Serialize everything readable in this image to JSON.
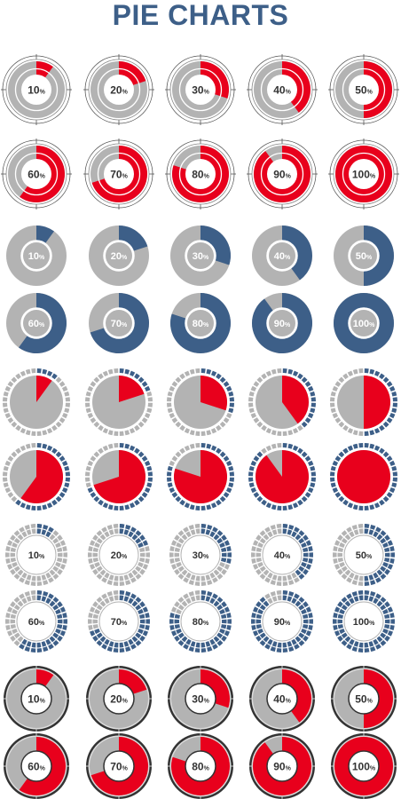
{
  "title": "PIE CHARTS",
  "colors": {
    "title": "#3d5f88",
    "red": "#e8001c",
    "blue": "#3d5f88",
    "gray": "#b3b3b3",
    "dark_ring": "#333333",
    "white": "#ffffff",
    "label": "#333333"
  },
  "chart_data": [
    {
      "type": "pie",
      "set": 1,
      "style": "donut-with-crosshair-ring",
      "accent": "red",
      "categories": [
        "10%",
        "20%",
        "30%",
        "40%",
        "50%",
        "60%",
        "70%",
        "80%",
        "90%",
        "100%"
      ],
      "values": [
        10,
        20,
        30,
        40,
        50,
        60,
        70,
        80,
        90,
        100
      ],
      "labels": [
        "10%",
        "20%",
        "30%",
        "40%",
        "50%",
        "60%",
        "70%",
        "80%",
        "90%",
        "100%"
      ]
    },
    {
      "type": "pie",
      "set": 2,
      "style": "donut",
      "accent": "blue",
      "categories": [
        "10%",
        "20%",
        "30%",
        "40%",
        "50%",
        "60%",
        "70%",
        "80%",
        "90%",
        "100%"
      ],
      "values": [
        10,
        20,
        30,
        40,
        50,
        60,
        70,
        80,
        90,
        100
      ],
      "labels": [
        "10%",
        "20%",
        "30%",
        "40%",
        "50%",
        "60%",
        "70%",
        "80%",
        "90%",
        "100%"
      ]
    },
    {
      "type": "pie",
      "set": 3,
      "style": "pie-with-segmented-ring",
      "accent": "red",
      "categories": [
        "10%",
        "20%",
        "30%",
        "40%",
        "50%",
        "60%",
        "70%",
        "80%",
        "90%",
        "100%"
      ],
      "values": [
        10,
        20,
        30,
        40,
        50,
        60,
        70,
        80,
        90,
        100
      ],
      "labels": []
    },
    {
      "type": "pie",
      "set": 4,
      "style": "segmented-donut",
      "accent": "blue",
      "categories": [
        "10%",
        "20%",
        "30%",
        "40%",
        "50%",
        "60%",
        "70%",
        "80%",
        "90%",
        "100%"
      ],
      "values": [
        10,
        20,
        30,
        40,
        50,
        60,
        70,
        80,
        90,
        100
      ],
      "labels": [
        "10%",
        "20%",
        "30%",
        "40%",
        "50%",
        "60%",
        "70%",
        "80%",
        "90%",
        "100%"
      ]
    },
    {
      "type": "pie",
      "set": 5,
      "style": "donut-with-dark-rim",
      "accent": "red",
      "categories": [
        "10%",
        "20%",
        "30%",
        "40%",
        "50%",
        "60%",
        "70%",
        "80%",
        "90%",
        "100%"
      ],
      "values": [
        10,
        20,
        30,
        40,
        50,
        60,
        70,
        80,
        90,
        100
      ],
      "labels": [
        "10%",
        "20%",
        "30%",
        "40%",
        "50%",
        "60%",
        "70%",
        "80%",
        "90%",
        "100%"
      ]
    }
  ]
}
